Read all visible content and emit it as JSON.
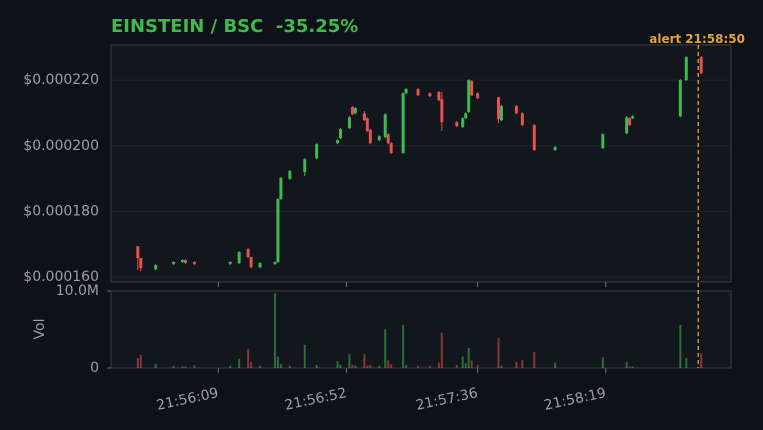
{
  "chart_data": {
    "type": "candlestick",
    "title": "EINSTEIN / BSC  -35.25%",
    "up_color": "#3fb950",
    "down_color": "#e5534b",
    "grid": true,
    "x": [
      "21:55:42",
      "21:55:43",
      "21:55:48",
      "21:55:54",
      "21:55:57",
      "21:55:58",
      "21:56:01",
      "21:56:13",
      "21:56:16",
      "21:56:19",
      "21:56:20",
      "21:56:23",
      "21:56:28",
      "21:56:29",
      "21:56:30",
      "21:56:33",
      "21:56:38",
      "21:56:42",
      "21:56:49",
      "21:56:50",
      "21:56:53",
      "21:56:54",
      "21:56:55",
      "21:56:58",
      "21:56:59",
      "21:57:00",
      "21:57:03",
      "21:57:05",
      "21:57:06",
      "21:57:07",
      "21:57:11",
      "21:57:12",
      "21:57:16",
      "21:57:20",
      "21:57:23",
      "21:57:24",
      "21:57:29",
      "21:57:31",
      "21:57:32",
      "21:57:33",
      "21:57:34",
      "21:57:36",
      "21:57:43",
      "21:57:44",
      "21:57:49",
      "21:57:51",
      "21:57:55",
      "21:58:02",
      "21:58:18",
      "21:58:26",
      "21:58:27",
      "21:58:28",
      "21:58:44",
      "21:58:46",
      "21:58:51"
    ],
    "open": [
      0.0001694,
      0.0001658,
      0.0001624,
      0.000164,
      0.0001646,
      0.0001652,
      0.0001646,
      0.000164,
      0.0001643,
      0.0001685,
      0.0001661,
      0.000163,
      0.000164,
      0.0001646,
      0.0001838,
      0.0001899,
      0.000192,
      0.0001962,
      0.0002008,
      0.0002023,
      0.0002054,
      0.0002118,
      0.0002099,
      0.0002099,
      0.0002084,
      0.0002048,
      0.0002017,
      0.0002026,
      0.0002035,
      0.0002008,
      0.0001978,
      0.000216,
      0.0002173,
      0.000216,
      0.0002164,
      0.0002142,
      0.0002072,
      0.0002057,
      0.0002084,
      0.0002103,
      0.0002197,
      0.000216,
      0.0002148,
      0.0002078,
      0.0002121,
      0.0002099,
      0.0002063,
      0.0001987,
      0.0001993,
      0.0002038,
      0.0002084,
      0.0002084,
      0.000209,
      0.00022,
      0.000227
    ],
    "high": [
      0.0001694,
      0.0001658,
      0.0001639,
      0.0001648,
      0.0001654,
      0.0001654,
      0.0001648,
      0.0001648,
      0.0001679,
      0.0001688,
      0.0001661,
      0.0001645,
      0.0001648,
      0.000184,
      0.0001905,
      0.0001926,
      0.0001962,
      0.0002008,
      0.000202,
      0.0002054,
      0.000209,
      0.0002121,
      0.0002118,
      0.0002106,
      0.0002087,
      0.0002051,
      0.0002032,
      0.0002099,
      0.0002038,
      0.0002011,
      0.0002163,
      0.0002176,
      0.0002176,
      0.0002163,
      0.0002167,
      0.0002164,
      0.0002075,
      0.0002087,
      0.0002102,
      0.0002203,
      0.00022,
      0.0002163,
      0.0002148,
      0.0002124,
      0.0002124,
      0.0002102,
      0.0002066,
      0.0001999,
      0.0002038,
      0.000209,
      0.0002087,
      0.0002093,
      0.0002203,
      0.0002273,
      0.0002273
    ],
    "low": [
      0.0001621,
      0.0001618,
      0.0001621,
      0.0001637,
      0.0001643,
      0.000164,
      0.0001637,
      0.0001637,
      0.000164,
      0.0001658,
      0.0001627,
      0.0001627,
      0.0001637,
      0.0001643,
      0.0001835,
      0.0001896,
      0.0001908,
      0.0001959,
      0.0002005,
      0.000202,
      0.0002051,
      0.0002093,
      0.0002096,
      0.0002075,
      0.0002042,
      0.0002005,
      0.0002014,
      0.0002023,
      0.0002005,
      0.0001975,
      0.0001975,
      0.0002157,
      0.0002151,
      0.0002148,
      0.0002136,
      0.0002045,
      0.0002057,
      0.0002054,
      0.0002081,
      0.00021,
      0.0002151,
      0.0002142,
      0.0002069,
      0.0002075,
      0.0002096,
      0.000206,
      0.0001984,
      0.0001984,
      0.000199,
      0.0002035,
      0.000206,
      0.0002081,
      0.0002087,
      0.0002197,
      0.0002218
    ],
    "close": [
      0.0001658,
      0.0001627,
      0.0001637,
      0.0001646,
      0.0001652,
      0.0001643,
      0.000164,
      0.0001646,
      0.0001676,
      0.0001661,
      0.000163,
      0.0001643,
      0.0001646,
      0.0001838,
      0.0001902,
      0.0001923,
      0.0001959,
      0.0002005,
      0.0002017,
      0.0002051,
      0.0002087,
      0.0002096,
      0.0002115,
      0.0002078,
      0.0002045,
      0.0002008,
      0.0002029,
      0.0002096,
      0.0002008,
      0.0001978,
      0.000216,
      0.0002173,
      0.0002154,
      0.0002151,
      0.0002139,
      0.0002072,
      0.000206,
      0.0002084,
      0.0002099,
      0.00022,
      0.0002154,
      0.0002145,
      0.0002081,
      0.0002121,
      0.0002099,
      0.0002063,
      0.0001987,
      0.0001996,
      0.0002035,
      0.0002087,
      0.0002063,
      0.000209,
      0.00022,
      0.000227,
      0.0002221
    ],
    "volume": [
      1300000.0,
      1700000.0,
      500000.0,
      300000.0,
      200000.0,
      200000.0,
      400000.0,
      300000.0,
      1200000.0,
      2500000.0,
      800000.0,
      300000.0,
      9700000.0,
      1500000.0,
      500000.0,
      300000.0,
      3000000.0,
      400000.0,
      900000.0,
      400000.0,
      1800000.0,
      400000.0,
      300000.0,
      1800000.0,
      300000.0,
      400000.0,
      300000.0,
      5000000.0,
      1000000.0,
      500000.0,
      5600000.0,
      400000.0,
      300000.0,
      300000.0,
      700000.0,
      4600000.0,
      400000.0,
      1500000.0,
      600000.0,
      2600000.0,
      1000000.0,
      400000.0,
      3900000.0,
      300000.0,
      800000.0,
      1000000.0,
      2100000.0,
      700000.0,
      1400000.0,
      800000.0,
      200000.0,
      200000.0,
      5600000.0,
      1300000.0,
      1900000.0
    ],
    "xlim": [
      "21:55:33",
      "21:59:01"
    ],
    "xticks": [
      "21:56:09",
      "21:56:52",
      "21:57:36",
      "21:58:19"
    ],
    "ylim": [
      0.0001585,
      0.0002307
    ],
    "yticks": [
      {
        "value": 0.00016,
        "label": "$0.000160"
      },
      {
        "value": 0.00018,
        "label": "$0.000180"
      },
      {
        "value": 0.0002,
        "label": "$0.000200"
      },
      {
        "value": 0.00022,
        "label": "$0.000220"
      }
    ],
    "volume_label": "Vol",
    "volume_ylim": [
      0,
      10000000
    ],
    "volume_yticks": [
      0,
      {
        "value": 10000000,
        "label": "10.0M"
      }
    ],
    "alert": {
      "label": "alert",
      "time": "21:58:50",
      "color": "#e3a535"
    }
  }
}
